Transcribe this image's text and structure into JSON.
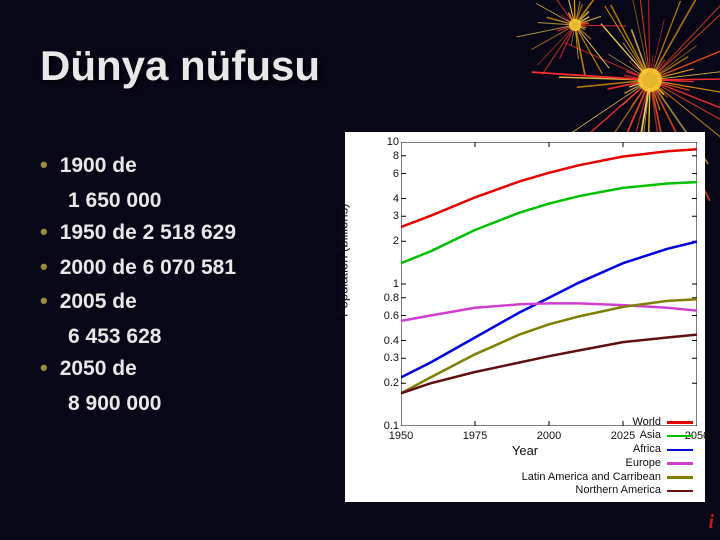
{
  "title": "Dünya nüfusu",
  "bullets": [
    {
      "head": "1900 de",
      "sub": "1 650 000"
    },
    {
      "head": "1950 de 2 518 629",
      "sub": null
    },
    {
      "head": "2000 de 6 070 581",
      "sub": null
    },
    {
      "head": "2005 de",
      "sub": "6 453 628"
    },
    {
      "head": "2050 de",
      "sub": "8 900 000"
    }
  ],
  "chart": {
    "type": "line",
    "y_scale": "log",
    "xlabel": "Year",
    "ylabel": "Population (billions)",
    "xlim": [
      1950,
      2050
    ],
    "ylim": [
      0.1,
      10
    ],
    "xticks": [
      1950,
      1975,
      2000,
      2025,
      2050
    ],
    "yticks": [
      0.1,
      0.2,
      0.3,
      0.4,
      0.6,
      0.8,
      1,
      2,
      3,
      4,
      6,
      8,
      10
    ],
    "background_color": "#ffffff",
    "axis_color": "#000000",
    "line_width": 2.5,
    "title_fontsize": 13,
    "tick_fontsize": 11,
    "series": [
      {
        "name": "World",
        "color": "#e60000",
        "years": [
          1950,
          1960,
          1975,
          1990,
          2000,
          2010,
          2025,
          2040,
          2050
        ],
        "values": [
          2.52,
          3.02,
          4.07,
          5.28,
          6.07,
          6.85,
          7.9,
          8.6,
          8.9
        ]
      },
      {
        "name": "Asia",
        "color": "#00c000",
        "years": [
          1950,
          1960,
          1975,
          1990,
          2000,
          2010,
          2025,
          2040,
          2050
        ],
        "values": [
          1.4,
          1.7,
          2.4,
          3.18,
          3.68,
          4.15,
          4.75,
          5.1,
          5.22
        ]
      },
      {
        "name": "Africa",
        "color": "#0000e0",
        "years": [
          1950,
          1960,
          1975,
          1990,
          2000,
          2010,
          2025,
          2040,
          2050
        ],
        "values": [
          0.22,
          0.28,
          0.42,
          0.63,
          0.8,
          1.02,
          1.4,
          1.77,
          1.99
        ]
      },
      {
        "name": "Europe",
        "color": "#d040d0",
        "years": [
          1950,
          1960,
          1975,
          1990,
          2000,
          2010,
          2025,
          2040,
          2050
        ],
        "values": [
          0.55,
          0.6,
          0.68,
          0.72,
          0.73,
          0.73,
          0.71,
          0.68,
          0.65
        ]
      },
      {
        "name": "Latin America and Carribean",
        "color": "#808000",
        "years": [
          1950,
          1960,
          1975,
          1990,
          2000,
          2010,
          2025,
          2040,
          2050
        ],
        "values": [
          0.17,
          0.22,
          0.32,
          0.44,
          0.52,
          0.59,
          0.69,
          0.76,
          0.78
        ]
      },
      {
        "name": "Northern America",
        "color": "#601010",
        "years": [
          1950,
          1960,
          1975,
          1990,
          2000,
          2010,
          2025,
          2040,
          2050
        ],
        "values": [
          0.17,
          0.2,
          0.24,
          0.28,
          0.31,
          0.34,
          0.39,
          0.42,
          0.44
        ]
      }
    ]
  },
  "corner_mark": "i",
  "fireworks": {
    "center_color": "#ffcc33",
    "ray_colors": [
      "#ff4d1a",
      "#ffa500",
      "#ffd24d",
      "#ff2e2e"
    ],
    "ray_count": 60
  }
}
